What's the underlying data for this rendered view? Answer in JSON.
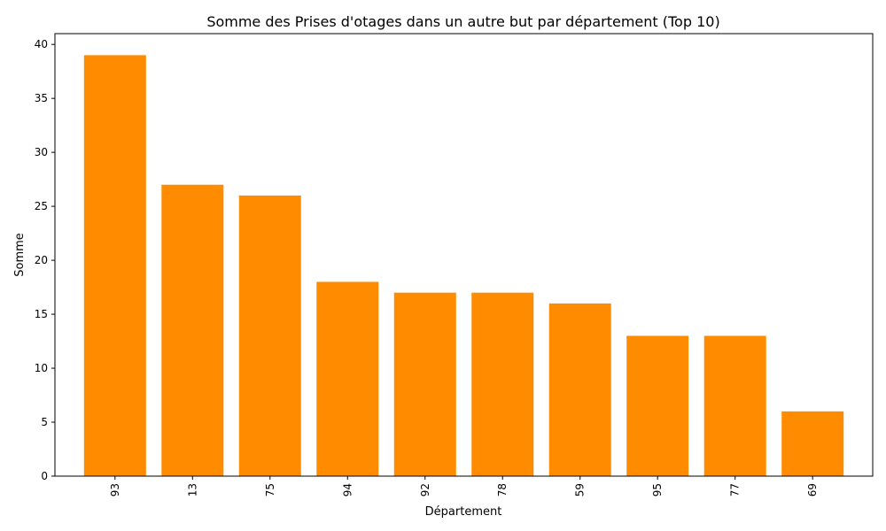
{
  "chart_data": {
    "type": "bar",
    "title": "Somme des Prises d'otages dans un autre but par département (Top 10)",
    "xlabel": "Département",
    "ylabel": "Somme",
    "categories": [
      "93",
      "13",
      "75",
      "94",
      "92",
      "78",
      "59",
      "95",
      "77",
      "69"
    ],
    "values": [
      39,
      27,
      26,
      18,
      17,
      17,
      16,
      13,
      13,
      6
    ],
    "ylim": [
      0,
      41
    ],
    "yticks": [
      0,
      5,
      10,
      15,
      20,
      25,
      30,
      35,
      40
    ],
    "bar_color": "#ff8c00",
    "grid": false,
    "legend": "none"
  }
}
